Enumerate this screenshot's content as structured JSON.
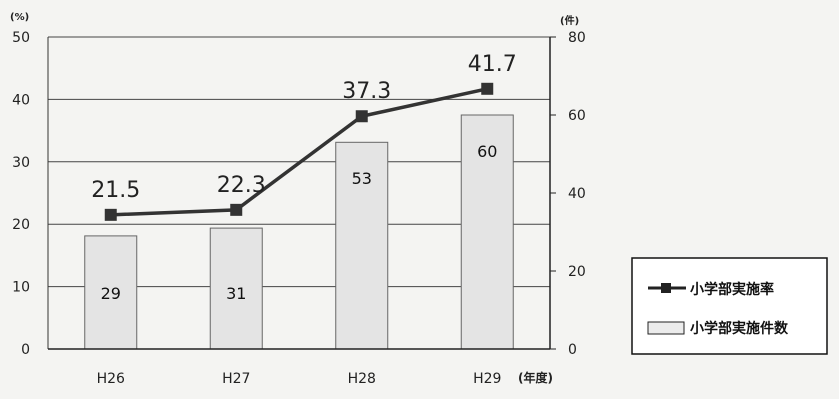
{
  "chart_data": {
    "type": "bar+line",
    "categories": [
      "H26",
      "H27",
      "H28",
      "H29"
    ],
    "x_unit": "(年度)",
    "series": [
      {
        "name": "小学部実施件数",
        "type": "bar",
        "axis": "right",
        "values": [
          29,
          31,
          53,
          60
        ],
        "color": "#e4e4e4"
      },
      {
        "name": "小学部実施率",
        "type": "line",
        "axis": "left",
        "values": [
          21.5,
          22.3,
          37.3,
          41.7
        ],
        "color": "#333333"
      }
    ],
    "y_left": {
      "unit": "(%)",
      "ticks": [
        0,
        10,
        20,
        30,
        40,
        50
      ],
      "ylim": [
        0,
        50
      ]
    },
    "y_right": {
      "unit": "(件)",
      "ticks": [
        0,
        20,
        40,
        60,
        80
      ],
      "ylim": [
        0,
        80
      ]
    },
    "grid": true,
    "legend_position": "right"
  }
}
